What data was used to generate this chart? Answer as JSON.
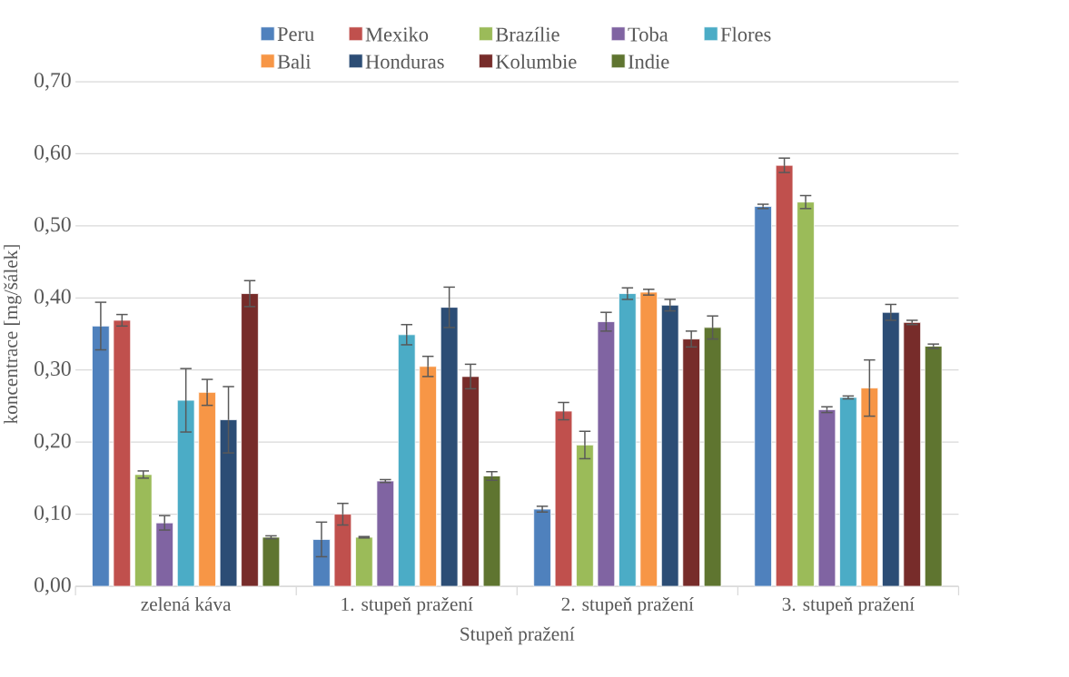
{
  "chart_data": {
    "type": "bar",
    "xlabel": "Stupeň pražení",
    "ylabel": "koncentrace [mg/šálek]",
    "categories": [
      "zelená káva",
      "1. stupeň pražení",
      "2. stupeň pražení",
      "3. stupeň pražení"
    ],
    "series": [
      {
        "name": "Peru",
        "color": "#4f81bd",
        "values": [
          0.361,
          0.065,
          0.107,
          0.527
        ],
        "errors": [
          0.033,
          0.024,
          0.004,
          0.003
        ]
      },
      {
        "name": "Mexiko",
        "color": "#c0504d",
        "values": [
          0.369,
          0.1,
          0.243,
          0.584
        ],
        "errors": [
          0.008,
          0.015,
          0.012,
          0.01
        ]
      },
      {
        "name": "Brazílie",
        "color": "#9bbb59",
        "values": [
          0.155,
          0.068,
          0.196,
          0.533
        ],
        "errors": [
          0.005,
          0.001,
          0.019,
          0.009
        ]
      },
      {
        "name": "Toba",
        "color": "#8064a2",
        "values": [
          0.088,
          0.146,
          0.367,
          0.245
        ],
        "errors": [
          0.01,
          0.002,
          0.013,
          0.004
        ]
      },
      {
        "name": "Flores",
        "color": "#4bacc6",
        "values": [
          0.258,
          0.349,
          0.406,
          0.262
        ],
        "errors": [
          0.044,
          0.014,
          0.008,
          0.002
        ]
      },
      {
        "name": "Bali",
        "color": "#f79646",
        "values": [
          0.269,
          0.305,
          0.408,
          0.275
        ],
        "errors": [
          0.018,
          0.014,
          0.004,
          0.039
        ]
      },
      {
        "name": "Honduras",
        "color": "#2c4d75",
        "values": [
          0.231,
          0.387,
          0.39,
          0.38
        ],
        "errors": [
          0.046,
          0.028,
          0.008,
          0.011
        ]
      },
      {
        "name": "Kolumbie",
        "color": "#772c2a",
        "values": [
          0.406,
          0.291,
          0.343,
          0.366
        ],
        "errors": [
          0.018,
          0.017,
          0.011,
          0.003
        ]
      },
      {
        "name": "Indie",
        "color": "#5f7530",
        "values": [
          0.068,
          0.153,
          0.359,
          0.333
        ],
        "errors": [
          0.002,
          0.006,
          0.016,
          0.003
        ]
      }
    ],
    "ylim": [
      0,
      0.7
    ],
    "yticks": [
      {
        "value": 0,
        "label": "0,00"
      },
      {
        "value": 0.1,
        "label": "0,10"
      },
      {
        "value": 0.2,
        "label": "0,20"
      },
      {
        "value": 0.3,
        "label": "0,30"
      },
      {
        "value": 0.4,
        "label": "0,40"
      },
      {
        "value": 0.5,
        "label": "0,50"
      },
      {
        "value": 0.6,
        "label": "0,60"
      },
      {
        "value": 0.7,
        "label": "0,70"
      }
    ],
    "grid": "y",
    "legend": "top"
  }
}
